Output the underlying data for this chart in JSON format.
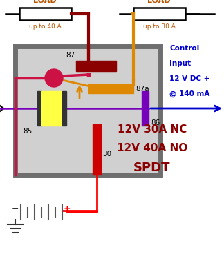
{
  "bg_color": "#ffffff",
  "box_color": "#6e6e6e",
  "box_fill": "#d0d0d0",
  "dark_red": "#8b0000",
  "brown_red": "#993300",
  "orange": "#cc7700",
  "bright_orange": "#dd8800",
  "pink_red": "#cc1144",
  "purple": "#7700bb",
  "blue": "#0000cc",
  "yellow": "#ffff44",
  "load_text_color": "#bb5500",
  "title_color": "#8b0000",
  "title_lines": [
    "12V 30A NC",
    "12V 40A NO",
    "SPDT"
  ],
  "control_text": [
    "Control",
    "Input",
    "12 V DC +",
    "@ 140 mA"
  ],
  "load1_text": "LOAD",
  "load1_sub": "up to 40 A",
  "load2_text": "LOAD",
  "load2_sub": "up to 30 A"
}
